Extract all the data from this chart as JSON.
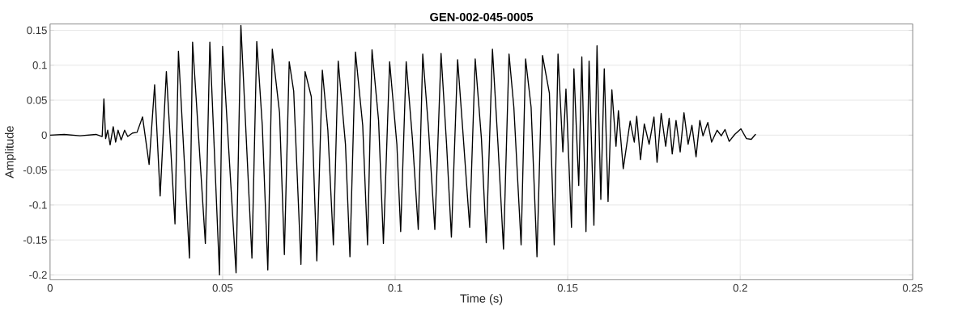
{
  "chart_data": {
    "type": "line",
    "title": "GEN-002-045-0005",
    "xlabel": "Time (s)",
    "ylabel": "Amplitude",
    "grid": true,
    "xlim": [
      0,
      0.25
    ],
    "ylim": [
      -0.207,
      0.159
    ],
    "xticks": [
      0,
      0.05,
      0.1,
      0.15,
      0.2,
      0.25
    ],
    "yticks": [
      -0.2,
      -0.15,
      -0.1,
      -0.05,
      0,
      0.05,
      0.1,
      0.15
    ],
    "x": [
      0,
      0.0041,
      0.0087,
      0.0133,
      0.0151,
      0.0156,
      0.0161,
      0.0167,
      0.0174,
      0.0183,
      0.019,
      0.0197,
      0.0206,
      0.0216,
      0.0225,
      0.0239,
      0.0252,
      0.0268,
      0.0287,
      0.0303,
      0.0319,
      0.0337,
      0.0362,
      0.0372,
      0.0404,
      0.0413,
      0.045,
      0.0463,
      0.0491,
      0.05,
      0.0539,
      0.0553,
      0.0585,
      0.0599,
      0.0615,
      0.0631,
      0.0644,
      0.0665,
      0.0679,
      0.0693,
      0.0706,
      0.0727,
      0.0739,
      0.0757,
      0.0773,
      0.0789,
      0.0805,
      0.0821,
      0.0835,
      0.0856,
      0.0869,
      0.0885,
      0.0906,
      0.092,
      0.0933,
      0.0952,
      0.0966,
      0.0984,
      0.1005,
      0.1016,
      0.1032,
      0.105,
      0.1067,
      0.108,
      0.1096,
      0.1115,
      0.1133,
      0.1149,
      0.1163,
      0.1181,
      0.1195,
      0.1216,
      0.1232,
      0.125,
      0.1264,
      0.1282,
      0.1298,
      0.1314,
      0.133,
      0.1344,
      0.1365,
      0.1378,
      0.1394,
      0.1411,
      0.1427,
      0.1447,
      0.1461,
      0.1472,
      0.1486,
      0.1495,
      0.1511,
      0.1518,
      0.1532,
      0.1541,
      0.1553,
      0.1562,
      0.1576,
      0.1585,
      0.1596,
      0.1606,
      0.1617,
      0.1628,
      0.164,
      0.1647,
      0.1661,
      0.1681,
      0.1693,
      0.17,
      0.1711,
      0.1722,
      0.1736,
      0.175,
      0.1759,
      0.1771,
      0.1784,
      0.1794,
      0.1803,
      0.1814,
      0.1826,
      0.1837,
      0.1849,
      0.186,
      0.1872,
      0.1883,
      0.1892,
      0.1906,
      0.1917,
      0.1933,
      0.1945,
      0.1956,
      0.1968,
      0.1984,
      0.2002,
      0.2018,
      0.2032,
      0.2044
    ],
    "values": [
      0,
      0.001,
      -0.001,
      0.001,
      -0.002,
      0.052,
      -0.005,
      0.007,
      -0.014,
      0.012,
      -0.01,
      0.007,
      -0.007,
      0.007,
      -0.002,
      0.003,
      0.004,
      0.026,
      -0.042,
      0.072,
      -0.087,
      0.091,
      -0.127,
      0.12,
      -0.176,
      0.133,
      -0.155,
      0.133,
      -0.2,
      0.127,
      -0.197,
      0.157,
      -0.176,
      0.134,
      0.014,
      -0.193,
      0.123,
      0.032,
      -0.171,
      0.105,
      0.063,
      -0.185,
      0.091,
      0.055,
      -0.18,
      0.093,
      0.007,
      -0.157,
      0.106,
      -0.013,
      -0.174,
      0.119,
      0.014,
      -0.157,
      0.122,
      0.021,
      -0.155,
      0.105,
      -0.013,
      -0.138,
      0.105,
      -0.005,
      -0.135,
      0.116,
      0.014,
      -0.135,
      0.117,
      -0.013,
      -0.146,
      0.108,
      0.014,
      -0.132,
      0.109,
      -0.005,
      -0.154,
      0.123,
      -0.013,
      -0.163,
      0.116,
      0.04,
      -0.157,
      0.109,
      0.04,
      -0.174,
      0.114,
      0.06,
      -0.157,
      0.116,
      -0.024,
      0.066,
      -0.132,
      0.095,
      -0.072,
      0.112,
      -0.138,
      0.106,
      -0.129,
      0.128,
      -0.092,
      0.095,
      -0.095,
      0.065,
      -0.016,
      0.035,
      -0.048,
      0.02,
      -0.01,
      0.027,
      -0.035,
      0.016,
      -0.013,
      0.026,
      -0.039,
      0.031,
      -0.016,
      0.024,
      -0.027,
      0.021,
      -0.024,
      0.032,
      -0.013,
      0.014,
      -0.031,
      0.021,
      -0.001,
      0.018,
      -0.01,
      0.007,
      -0.001,
      0.008,
      -0.009,
      0.001,
      0.009,
      -0.005,
      -0.006,
      0.001
    ],
    "color": "#000000"
  }
}
